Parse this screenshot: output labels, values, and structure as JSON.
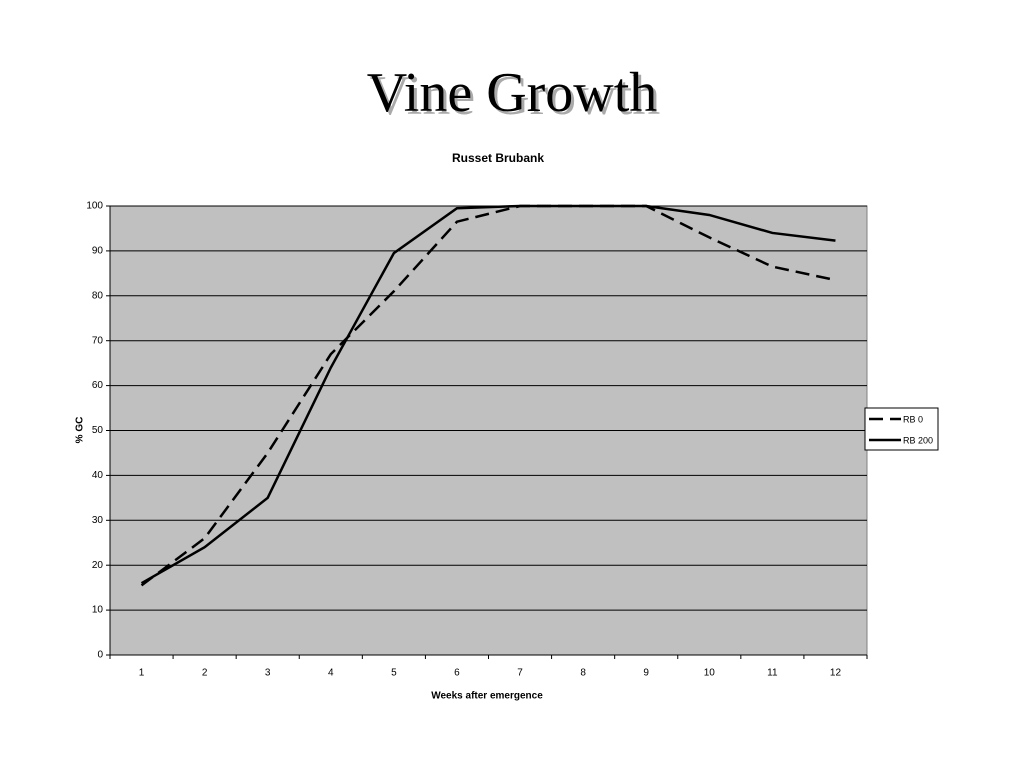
{
  "slide": {
    "title": "Vine Growth"
  },
  "chart_data": {
    "type": "line",
    "title": "Russet Brubank",
    "x_label": "Weeks after emergence",
    "y_label": "% GC",
    "categories": [
      "1",
      "2",
      "3",
      "4",
      "5",
      "6",
      "7",
      "8",
      "9",
      "10",
      "11",
      "12"
    ],
    "series": [
      {
        "name": "RB 0",
        "color": "#000000",
        "line_style": "dashed",
        "values": [
          15.5,
          26,
          45,
          67,
          81,
          96.5,
          100,
          100,
          100,
          93,
          86.5,
          83.5
        ]
      },
      {
        "name": "RB 200",
        "color": "#000000",
        "line_style": "solid",
        "values": [
          16,
          24,
          35,
          64,
          89.5,
          99.5,
          100,
          100,
          100,
          98,
          94,
          92.3
        ]
      }
    ],
    "ylim": [
      0,
      100
    ],
    "yticks": [
      0,
      10,
      20,
      30,
      40,
      50,
      60,
      70,
      80,
      90,
      100
    ],
    "grid": true,
    "plot_background": "#c0c0c0",
    "legend": "right"
  }
}
